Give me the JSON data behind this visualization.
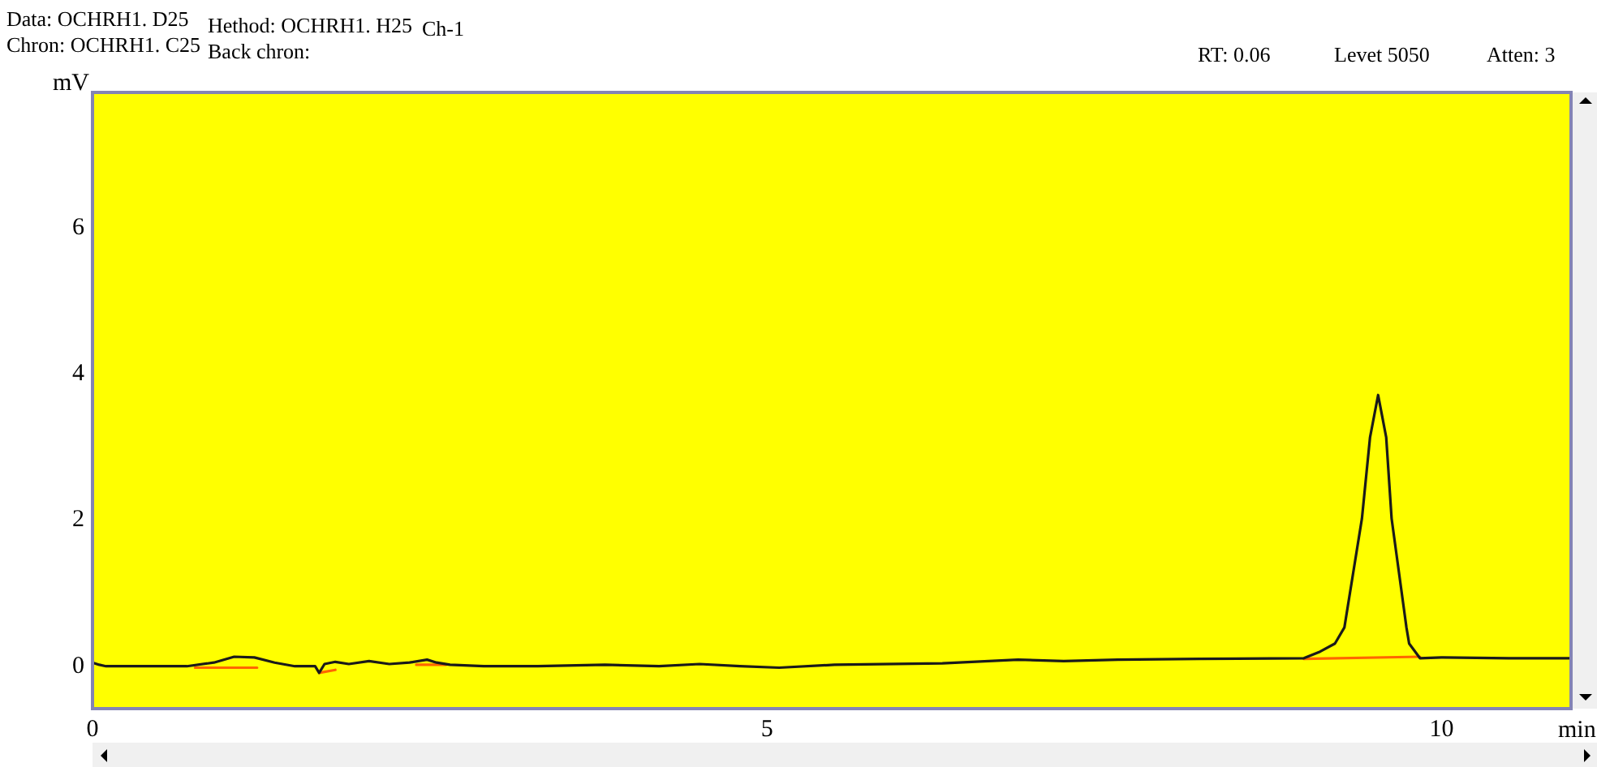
{
  "chart_data": {
    "type": "line",
    "xlabel": "min",
    "ylabel": "mV",
    "annotations": [
      "Data: OCHRH1. D25",
      "Chron: OCHRH1. C25",
      "Hethod: OCHRH1. H25",
      "Back chron:",
      "Ch-1",
      "RT: 0.06",
      "Levet 5050",
      "Atten: 3"
    ],
    "xlim": [
      0,
      10.96
    ],
    "ylim": [
      -0.58,
      7.85
    ],
    "xticks": [
      0,
      5,
      10
    ],
    "yticks": [
      0,
      2,
      4,
      6
    ],
    "grid": false,
    "legend": false,
    "marker": "none",
    "line_style": "solid",
    "series": [
      {
        "color": "#1a1a1a",
        "x": [
          0,
          0.05,
          0.1,
          0.5,
          0.7,
          0.9,
          1.05,
          1.2,
          1.35,
          1.5,
          1.65,
          1.68,
          1.72,
          1.8,
          1.9,
          2.05,
          2.2,
          2.35,
          2.48,
          2.55,
          2.65,
          2.9,
          3.3,
          3.8,
          4.2,
          4.5,
          4.8,
          5.09,
          5.5,
          6.3,
          6.86,
          7.2,
          7.6,
          8.2,
          8.98,
          9.1,
          9.21,
          9.28,
          9.41,
          9.47,
          9.53,
          9.59,
          9.63,
          9.74,
          9.76,
          9.84,
          10.0,
          10.5,
          10.96
        ],
        "values": [
          0.05,
          0.02,
          0,
          0,
          0,
          0.05,
          0.13,
          0.12,
          0.05,
          0,
          0,
          -0.09,
          0.03,
          0.06,
          0.03,
          0.07,
          0.03,
          0.05,
          0.09,
          0.05,
          0.02,
          0,
          0,
          0.02,
          0,
          0.03,
          0,
          -0.02,
          0.02,
          0.04,
          0.09,
          0.07,
          0.09,
          0.1,
          0.11,
          0.2,
          0.31,
          0.53,
          2.02,
          3.13,
          3.71,
          3.13,
          2.02,
          0.53,
          0.31,
          0.11,
          0.12,
          0.11,
          0.11
        ]
      },
      {
        "color": "#ff6600",
        "x": [
          0.76,
          1.22,
          1.23,
          1.68,
          1.8,
          1.81,
          2.4,
          2.62,
          2.63,
          8.98,
          9.84
        ],
        "values": [
          -0.02,
          -0.02,
          null,
          -0.09,
          -0.05,
          null,
          0.02,
          0.02,
          null,
          0.1,
          0.13
        ]
      }
    ]
  }
}
